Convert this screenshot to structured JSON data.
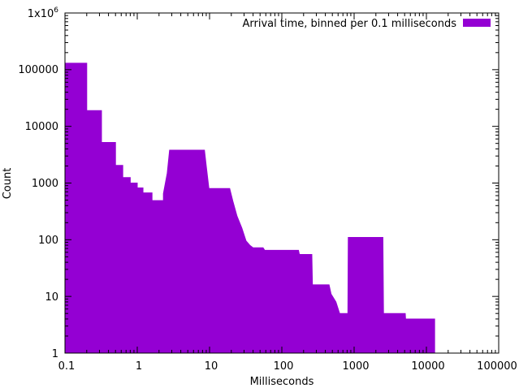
{
  "chart_data": {
    "type": "area",
    "title": "",
    "xlabel": "Milliseconds",
    "ylabel": "Count",
    "xscale": "log",
    "yscale": "log",
    "xlim": [
      0.1,
      100000
    ],
    "ylim": [
      1,
      1000000
    ],
    "x_tick_labels": [
      "0.1",
      "1",
      "10",
      "100",
      "1000",
      "10000",
      "100000"
    ],
    "y_tick_labels": [
      "1",
      "10",
      "100",
      "1000",
      "10000",
      "100000",
      "1x10^6"
    ],
    "grid": false,
    "legend_position": "top-right",
    "series": [
      {
        "name": "Arrival time, binned per 0.1 milliseconds",
        "color": "#9400d3",
        "points": [
          [
            0.1,
            130000
          ],
          [
            0.2,
            130000
          ],
          [
            0.2,
            19000
          ],
          [
            0.32,
            19000
          ],
          [
            0.32,
            5200
          ],
          [
            0.5,
            5200
          ],
          [
            0.5,
            2050
          ],
          [
            0.63,
            2050
          ],
          [
            0.63,
            1250
          ],
          [
            0.8,
            1250
          ],
          [
            0.8,
            1000
          ],
          [
            1.0,
            1000
          ],
          [
            1.0,
            820
          ],
          [
            1.2,
            820
          ],
          [
            1.2,
            670
          ],
          [
            1.6,
            670
          ],
          [
            1.6,
            490
          ],
          [
            2.3,
            490
          ],
          [
            2.3,
            650
          ],
          [
            2.6,
            1500
          ],
          [
            2.8,
            3800
          ],
          [
            8.5,
            3800
          ],
          [
            9.0,
            2000
          ],
          [
            9.8,
            800
          ],
          [
            19,
            800
          ],
          [
            21,
            480
          ],
          [
            24,
            260
          ],
          [
            28,
            160
          ],
          [
            32,
            95
          ],
          [
            36,
            80
          ],
          [
            40,
            72
          ],
          [
            55,
            72
          ],
          [
            58,
            65
          ],
          [
            170,
            65
          ],
          [
            175,
            55
          ],
          [
            260,
            55
          ],
          [
            265,
            16
          ],
          [
            450,
            16
          ],
          [
            480,
            11
          ],
          [
            560,
            8
          ],
          [
            630,
            5
          ],
          [
            820,
            5
          ],
          [
            830,
            110
          ],
          [
            2500,
            110
          ],
          [
            2550,
            5
          ],
          [
            5100,
            5
          ],
          [
            5150,
            4
          ],
          [
            13000,
            4
          ]
        ]
      }
    ]
  }
}
